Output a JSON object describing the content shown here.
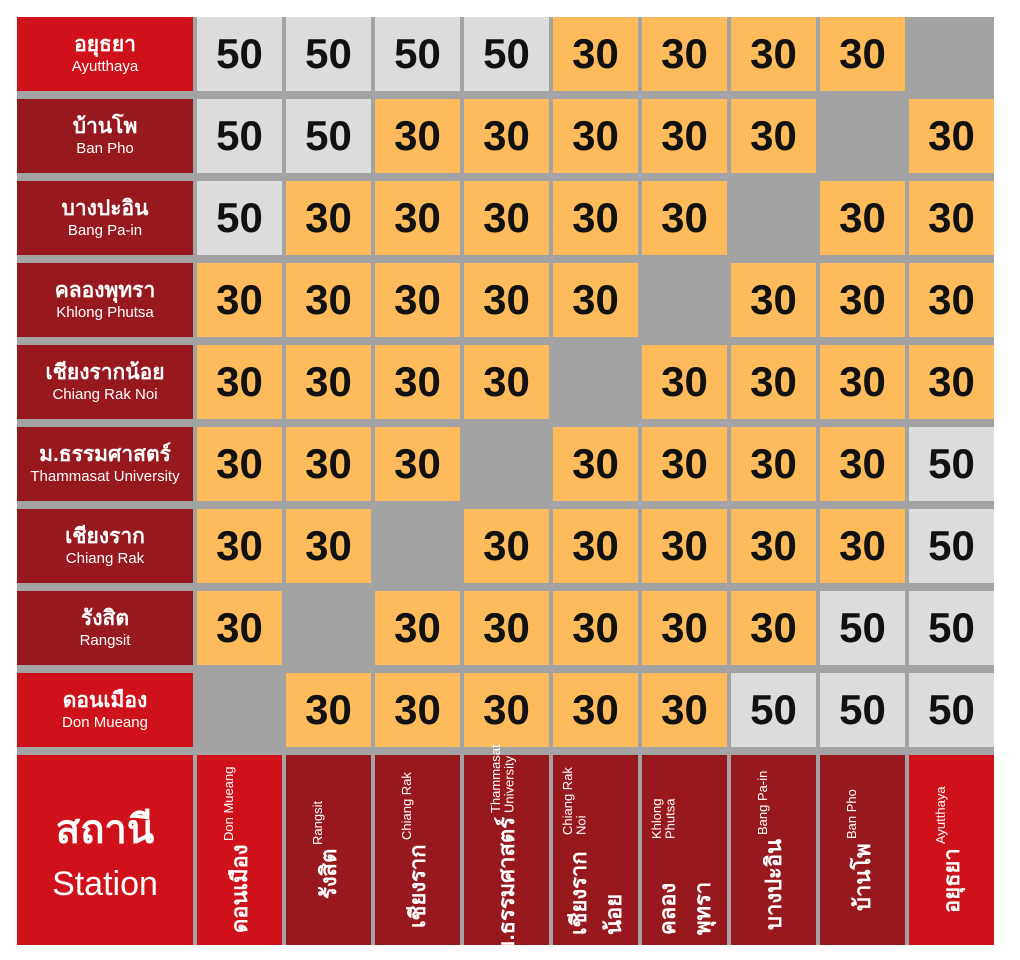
{
  "header": {
    "label_th": "สถานี",
    "label_en": "Station"
  },
  "columns": [
    {
      "th": "ดอนเมือง",
      "en": "Don Mueang"
    },
    {
      "th": "รังสิต",
      "en": "Rangsit"
    },
    {
      "th": "เชียงราก",
      "en": "Chiang Rak"
    },
    {
      "th": "ม.ธรรมศาสตร์",
      "en": "Thammasat University"
    },
    {
      "th": "เชียงรากน้อย",
      "en": "Chiang Rak Noi"
    },
    {
      "th": "คลองพุทรา",
      "en": "Khlong Phutsa"
    },
    {
      "th": "บางปะอิน",
      "en": "Bang Pa-in"
    },
    {
      "th": "บ้านโพ",
      "en": "Ban Pho"
    },
    {
      "th": "อยุธยา",
      "en": "Ayutthaya"
    }
  ],
  "rows": [
    {
      "th": "อยุธยา",
      "en": "Ayutthaya",
      "fares": [
        50,
        50,
        50,
        50,
        30,
        30,
        30,
        30,
        null
      ]
    },
    {
      "th": "บ้านโพ",
      "en": "Ban Pho",
      "fares": [
        50,
        50,
        30,
        30,
        30,
        30,
        30,
        null,
        30
      ]
    },
    {
      "th": "บางปะอิน",
      "en": "Bang Pa-in",
      "fares": [
        50,
        30,
        30,
        30,
        30,
        30,
        null,
        30,
        30
      ]
    },
    {
      "th": "คลองพุทรา",
      "en": "Khlong Phutsa",
      "fares": [
        30,
        30,
        30,
        30,
        30,
        null,
        30,
        30,
        30
      ]
    },
    {
      "th": "เชียงรากน้อย",
      "en": "Chiang Rak Noi",
      "fares": [
        30,
        30,
        30,
        30,
        null,
        30,
        30,
        30,
        30
      ]
    },
    {
      "th": "ม.ธรรมศาสตร์",
      "en": "Thammasat University",
      "fares": [
        30,
        30,
        30,
        null,
        30,
        30,
        30,
        30,
        50
      ]
    },
    {
      "th": "เชียงราก",
      "en": "Chiang Rak",
      "fares": [
        30,
        30,
        null,
        30,
        30,
        30,
        30,
        30,
        50
      ]
    },
    {
      "th": "รังสิต",
      "en": "Rangsit",
      "fares": [
        30,
        null,
        30,
        30,
        30,
        30,
        30,
        50,
        50
      ]
    },
    {
      "th": "ดอนเมือง",
      "en": "Don Mueang",
      "fares": [
        null,
        30,
        30,
        30,
        30,
        30,
        50,
        50,
        50
      ]
    }
  ]
}
